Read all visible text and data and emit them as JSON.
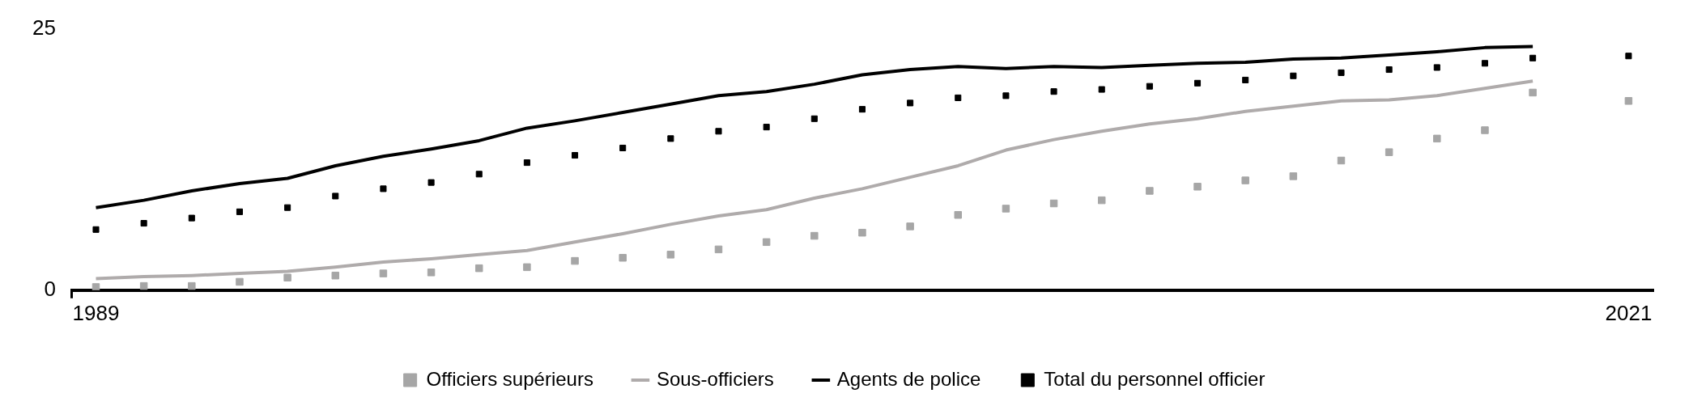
{
  "chart_data": {
    "type": "line",
    "categories": [
      "1989",
      null,
      null,
      null,
      null,
      null,
      null,
      null,
      null,
      null,
      null,
      null,
      null,
      null,
      null,
      null,
      null,
      null,
      null,
      null,
      null,
      null,
      null,
      null,
      null,
      null,
      null,
      null,
      null,
      null,
      null,
      null,
      "2021"
    ],
    "series": [
      {
        "name": "Officiers supérieurs",
        "type": "scatter",
        "marker": "square",
        "color": "#a6a6a6",
        "values": [
          0.3,
          0.4,
          0.4,
          0.8,
          1.2,
          1.4,
          1.6,
          1.7,
          2.1,
          2.2,
          2.8,
          3.1,
          3.4,
          3.9,
          4.6,
          5.2,
          5.5,
          6.1,
          7.2,
          7.8,
          8.3,
          8.6,
          9.5,
          9.9,
          10.5,
          10.9,
          12.4,
          13.2,
          14.5,
          15.3,
          18.9,
          null,
          18.1
        ]
      },
      {
        "name": "Sous-officiers",
        "type": "line",
        "marker": "none",
        "color": "#afabab",
        "values": [
          1.1,
          1.3,
          1.4,
          1.6,
          1.8,
          2.2,
          2.7,
          3.0,
          3.4,
          3.8,
          4.6,
          5.4,
          6.3,
          7.1,
          7.7,
          8.8,
          9.7,
          10.8,
          11.9,
          13.4,
          14.4,
          15.2,
          15.9,
          16.4,
          17.1,
          17.6,
          18.1,
          18.2,
          18.6,
          19.3,
          20.0,
          null,
          null
        ]
      },
      {
        "name": "Agents de police",
        "type": "line",
        "marker": "none",
        "color": "#000000",
        "values": [
          7.9,
          8.6,
          9.5,
          10.2,
          10.7,
          11.9,
          12.8,
          13.5,
          14.3,
          15.5,
          16.2,
          17.0,
          17.8,
          18.6,
          19.0,
          19.7,
          20.6,
          21.1,
          21.4,
          21.2,
          21.4,
          21.3,
          21.5,
          21.7,
          21.8,
          22.1,
          22.2,
          22.5,
          22.8,
          23.2,
          23.3,
          null,
          null
        ]
      },
      {
        "name": "Total du personnel officier",
        "type": "scatter",
        "marker": "square",
        "color": "#000000",
        "values": [
          5.8,
          6.4,
          6.9,
          7.5,
          7.9,
          9.0,
          9.7,
          10.3,
          11.1,
          12.2,
          12.9,
          13.6,
          14.5,
          15.2,
          15.6,
          16.4,
          17.3,
          17.9,
          18.4,
          18.6,
          19.0,
          19.2,
          19.5,
          19.8,
          20.1,
          20.5,
          20.8,
          21.1,
          21.3,
          21.7,
          22.2,
          null,
          22.4
        ]
      }
    ],
    "ylim": [
      0,
      25
    ],
    "yticks": [
      0,
      25
    ],
    "grid": false,
    "legend": "bottom"
  }
}
